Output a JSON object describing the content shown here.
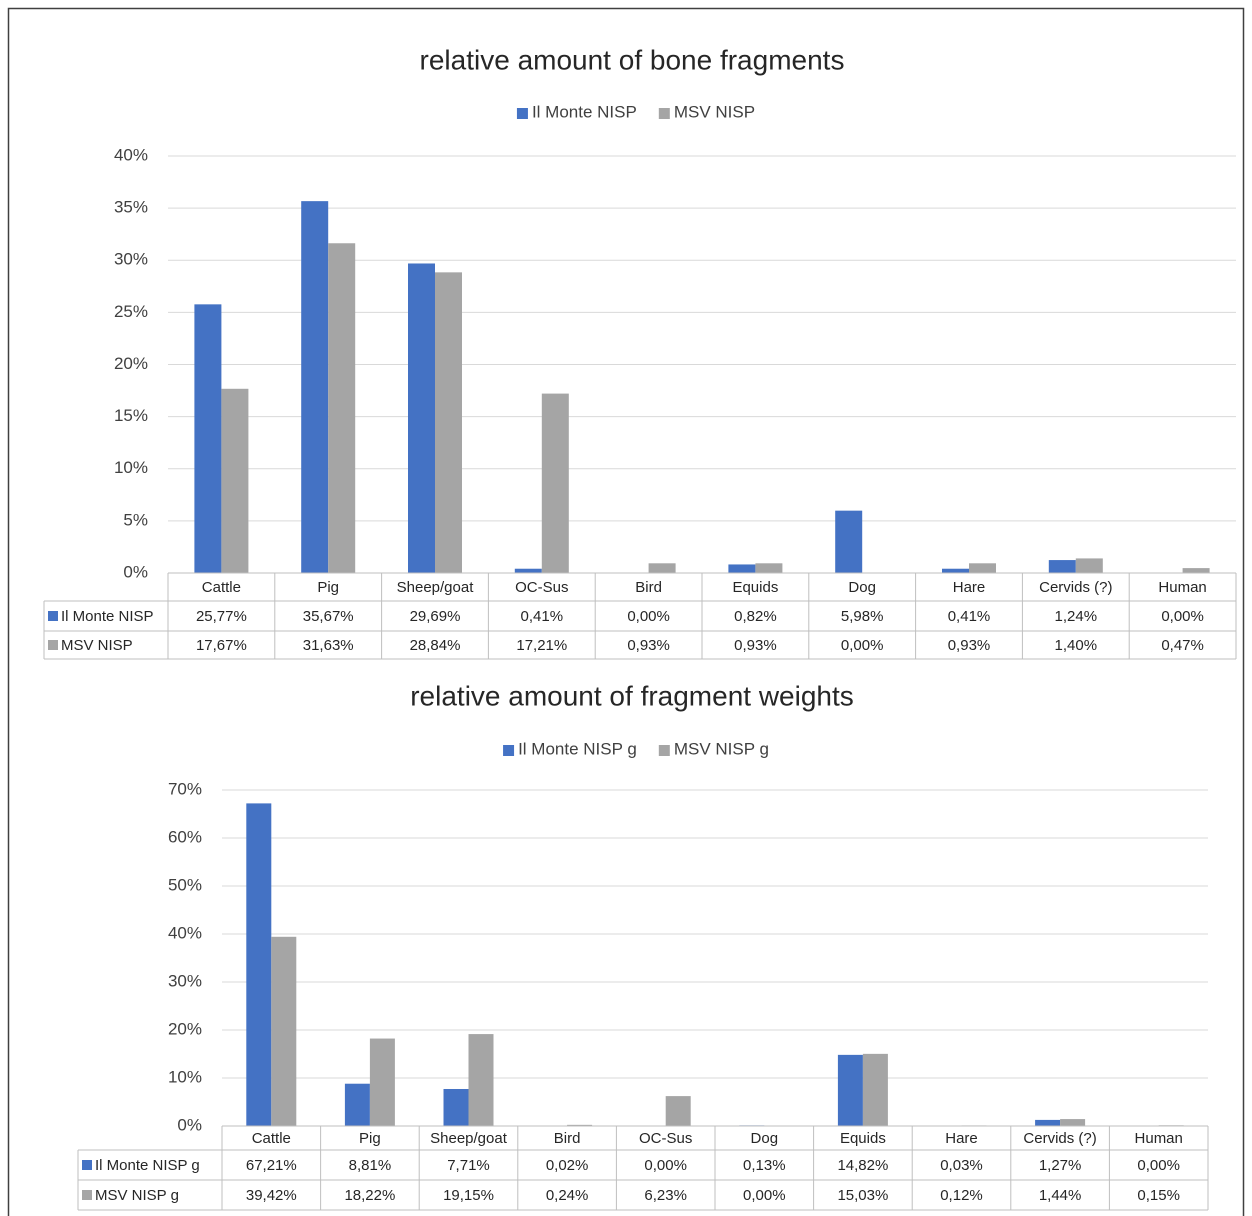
{
  "chart_data": [
    {
      "type": "bar",
      "title": "relative amount of bone fragments",
      "categories": [
        "Cattle",
        "Pig",
        "Sheep/goat",
        "OC-Sus",
        "Bird",
        "Equids",
        "Dog",
        "Hare",
        "Cervids (?)",
        "Human"
      ],
      "series": [
        {
          "name": "Il Monte NISP",
          "color": "#4472c4",
          "values": [
            25.77,
            35.67,
            29.69,
            0.41,
            0.0,
            0.82,
            5.98,
            0.41,
            1.24,
            0.0
          ],
          "value_labels": [
            "25,77%",
            "35,67%",
            "29,69%",
            "0,41%",
            "0,00%",
            "0,82%",
            "5,98%",
            "0,41%",
            "1,24%",
            "0,00%"
          ]
        },
        {
          "name": "MSV NISP",
          "color": "#a5a5a5",
          "values": [
            17.67,
            31.63,
            28.84,
            17.21,
            0.93,
            0.93,
            0.0,
            0.93,
            1.4,
            0.47
          ],
          "value_labels": [
            "17,67%",
            "31,63%",
            "28,84%",
            "17,21%",
            "0,93%",
            "0,93%",
            "0,00%",
            "0,93%",
            "1,40%",
            "0,47%"
          ]
        }
      ],
      "ylim": [
        0,
        40
      ],
      "yticks": [
        {
          "value": 0,
          "label": "0%"
        },
        {
          "value": 5,
          "label": "5%"
        },
        {
          "value": 10,
          "label": "10%"
        },
        {
          "value": 15,
          "label": "15%"
        },
        {
          "value": 20,
          "label": "20%"
        },
        {
          "value": 25,
          "label": "25%"
        },
        {
          "value": 30,
          "label": "30%"
        },
        {
          "value": 35,
          "label": "35%"
        },
        {
          "value": 40,
          "label": "40%"
        }
      ],
      "grid": true,
      "legend": "top",
      "data_table": true
    },
    {
      "type": "bar",
      "title": "relative amount of fragment weights",
      "categories": [
        "Cattle",
        "Pig",
        "Sheep/goat",
        "Bird",
        "OC-Sus",
        "Dog",
        "Equids",
        "Hare",
        "Cervids (?)",
        "Human"
      ],
      "series": [
        {
          "name": "Il Monte NISP g",
          "color": "#4472c4",
          "values": [
            67.21,
            8.81,
            7.71,
            0.02,
            0.0,
            0.13,
            14.82,
            0.03,
            1.27,
            0.0
          ],
          "value_labels": [
            "67,21%",
            "8,81%",
            "7,71%",
            "0,02%",
            "0,00%",
            "0,13%",
            "14,82%",
            "0,03%",
            "1,27%",
            "0,00%"
          ]
        },
        {
          "name": "MSV NISP g",
          "color": "#a5a5a5",
          "values": [
            39.42,
            18.22,
            19.15,
            0.24,
            6.23,
            0.0,
            15.03,
            0.12,
            1.44,
            0.15
          ],
          "value_labels": [
            "39,42%",
            "18,22%",
            "19,15%",
            "0,24%",
            "6,23%",
            "0,00%",
            "15,03%",
            "0,12%",
            "1,44%",
            "0,15%"
          ]
        }
      ],
      "ylim": [
        0,
        70
      ],
      "yticks": [
        {
          "value": 0,
          "label": "0%"
        },
        {
          "value": 10,
          "label": "10%"
        },
        {
          "value": 20,
          "label": "20%"
        },
        {
          "value": 30,
          "label": "30%"
        },
        {
          "value": 40,
          "label": "40%"
        },
        {
          "value": 50,
          "label": "50%"
        },
        {
          "value": 60,
          "label": "60%"
        },
        {
          "value": 70,
          "label": "70%"
        }
      ],
      "grid": true,
      "legend": "top",
      "data_table": true
    }
  ]
}
